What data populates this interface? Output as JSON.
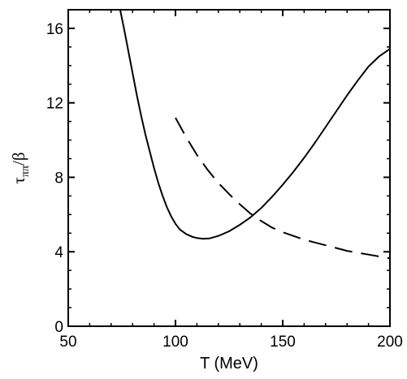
{
  "chart_data": {
    "type": "line",
    "xlabel": "T (MeV)",
    "ylabel_main": "τ",
    "ylabel_sub": "ππ",
    "ylabel_tail": "/β",
    "xlim": [
      50,
      200
    ],
    "ylim": [
      0,
      17
    ],
    "x_ticks": [
      50,
      100,
      150,
      200
    ],
    "x_tick_labels": [
      "50",
      "100",
      "150",
      "200"
    ],
    "y_ticks": [
      0,
      4,
      8,
      12,
      16
    ],
    "y_tick_labels": [
      "0",
      "4",
      "8",
      "12",
      "16"
    ],
    "grid": false,
    "series": [
      {
        "style": "solid",
        "x": [
          74.2,
          76,
          78,
          80,
          82,
          84,
          86,
          88,
          90,
          92,
          94,
          96,
          98,
          100,
          102,
          105,
          108,
          110,
          113,
          116,
          120,
          125,
          130,
          135,
          140,
          145,
          150,
          155,
          160,
          165,
          170,
          175,
          180,
          185,
          190,
          195,
          200
        ],
        "y": [
          17.0,
          16.0,
          14.8,
          13.6,
          12.4,
          11.3,
          10.3,
          9.4,
          8.5,
          7.7,
          7.0,
          6.4,
          5.9,
          5.5,
          5.2,
          4.95,
          4.8,
          4.74,
          4.7,
          4.72,
          4.85,
          5.1,
          5.45,
          5.85,
          6.35,
          6.95,
          7.6,
          8.3,
          9.05,
          9.85,
          10.7,
          11.55,
          12.4,
          13.2,
          13.95,
          14.5,
          14.9
        ]
      },
      {
        "style": "dashed",
        "x": [
          100,
          105,
          110,
          115,
          120,
          125,
          130,
          135,
          140,
          145,
          150,
          155,
          160,
          165,
          170,
          175,
          180,
          185,
          190,
          195,
          200
        ],
        "y": [
          11.2,
          10.15,
          9.2,
          8.4,
          7.7,
          7.1,
          6.55,
          6.05,
          5.65,
          5.3,
          5.05,
          4.85,
          4.65,
          4.5,
          4.35,
          4.2,
          4.05,
          3.95,
          3.85,
          3.75,
          3.65
        ]
      }
    ]
  }
}
